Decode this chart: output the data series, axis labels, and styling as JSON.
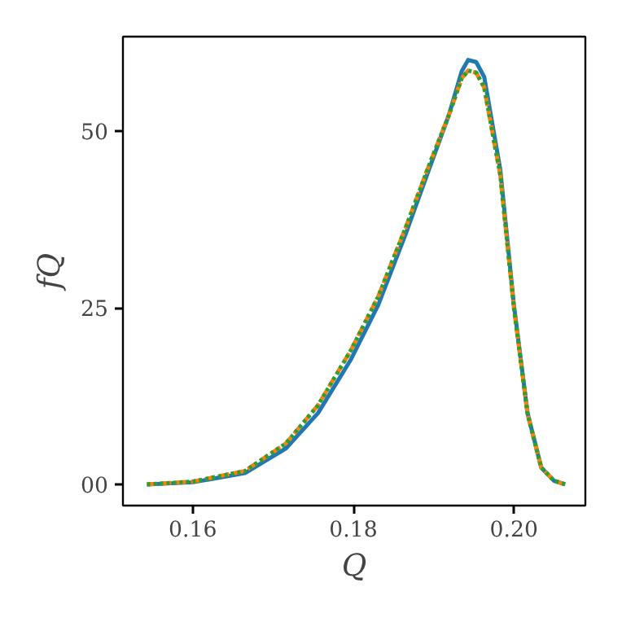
{
  "chart_data": {
    "type": "line",
    "xlabel": "Q",
    "ylabel": "fQ",
    "xlim": [
      0.1513,
      0.2089
    ],
    "ylim": [
      -3.0,
      63.4
    ],
    "xticks": [
      0.16,
      0.18,
      {
        "value": 0.2,
        "label": "0.20"
      }
    ],
    "yticks": [
      {
        "value": 0,
        "label": "00"
      },
      25,
      50
    ],
    "grid": false,
    "series": [
      {
        "color": "#1f77b4",
        "line_style": "solid",
        "x": [
          0.1543,
          0.16,
          0.1665,
          0.1716,
          0.1756,
          0.1797,
          0.1831,
          0.1865,
          0.1892,
          0.1919,
          0.1935,
          0.1943,
          0.1953,
          0.1963,
          0.1983,
          0.2,
          0.2017,
          0.2034,
          0.205,
          0.2064
        ],
        "values": [
          0,
          0.3,
          1.6,
          5.1,
          10.1,
          17.7,
          25.4,
          35.4,
          43.9,
          52.3,
          58.5,
          60.1,
          59.8,
          57.7,
          44.6,
          25.4,
          10.1,
          2.4,
          0.5,
          0
        ]
      },
      {
        "color": "#ff7f0e",
        "line_style": "dashed",
        "x": [
          0.1543,
          0.16,
          0.1665,
          0.1716,
          0.1756,
          0.1797,
          0.1831,
          0.1865,
          0.1892,
          0.1919,
          0.1935,
          0.1943,
          0.1953,
          0.1963,
          0.1983,
          0.2,
          0.2017,
          0.2034,
          0.205,
          0.2064
        ],
        "values": [
          0,
          0.4,
          1.9,
          5.8,
          11.2,
          19.0,
          26.6,
          36.3,
          44.5,
          52.3,
          57.5,
          58.6,
          58.3,
          56.2,
          43.8,
          25.0,
          10.0,
          2.4,
          0.5,
          0
        ]
      },
      {
        "color": "#2ca02c",
        "line_style": "dotted",
        "x": [
          0.1543,
          0.16,
          0.1665,
          0.1716,
          0.1756,
          0.1797,
          0.1831,
          0.1865,
          0.1892,
          0.1919,
          0.1935,
          0.1943,
          0.1953,
          0.1963,
          0.1983,
          0.2,
          0.2017,
          0.2034,
          0.205,
          0.2064
        ],
        "values": [
          0,
          0.4,
          1.9,
          5.8,
          11.2,
          19.0,
          26.6,
          36.3,
          44.5,
          52.3,
          57.5,
          58.6,
          58.3,
          56.2,
          43.8,
          25.0,
          10.0,
          2.4,
          0.5,
          0
        ]
      }
    ]
  }
}
